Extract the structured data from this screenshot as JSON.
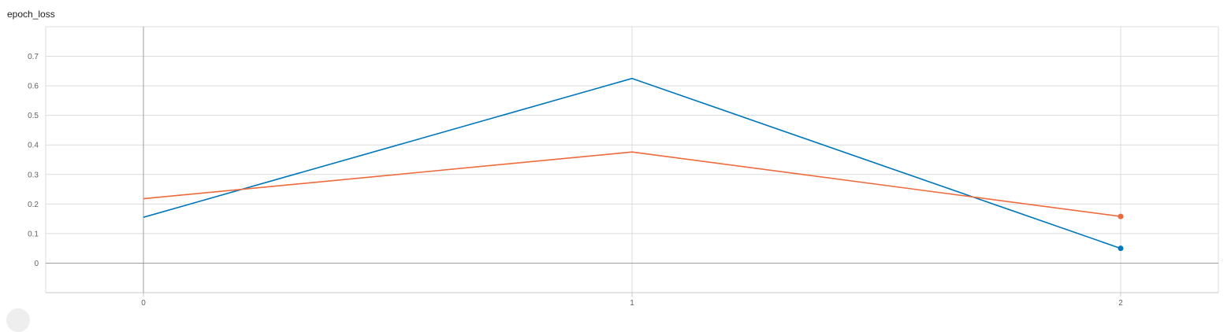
{
  "chart_data": {
    "type": "line",
    "title": "epoch_loss",
    "xlabel": "",
    "ylabel": "",
    "x": [
      0,
      1,
      2
    ],
    "xticks": [
      0,
      1,
      2
    ],
    "yticks": [
      0,
      0.1,
      0.2,
      0.3,
      0.4,
      0.5,
      0.6,
      0.7
    ],
    "xlim": [
      -0.2,
      2.2
    ],
    "ylim": [
      -0.1,
      0.8
    ],
    "grid": true,
    "series": [
      {
        "color": "#0077bb",
        "values": [
          0.155,
          0.625,
          0.05
        ]
      },
      {
        "color": "#ee6a3c",
        "values": [
          0.218,
          0.376,
          0.158
        ]
      }
    ]
  }
}
